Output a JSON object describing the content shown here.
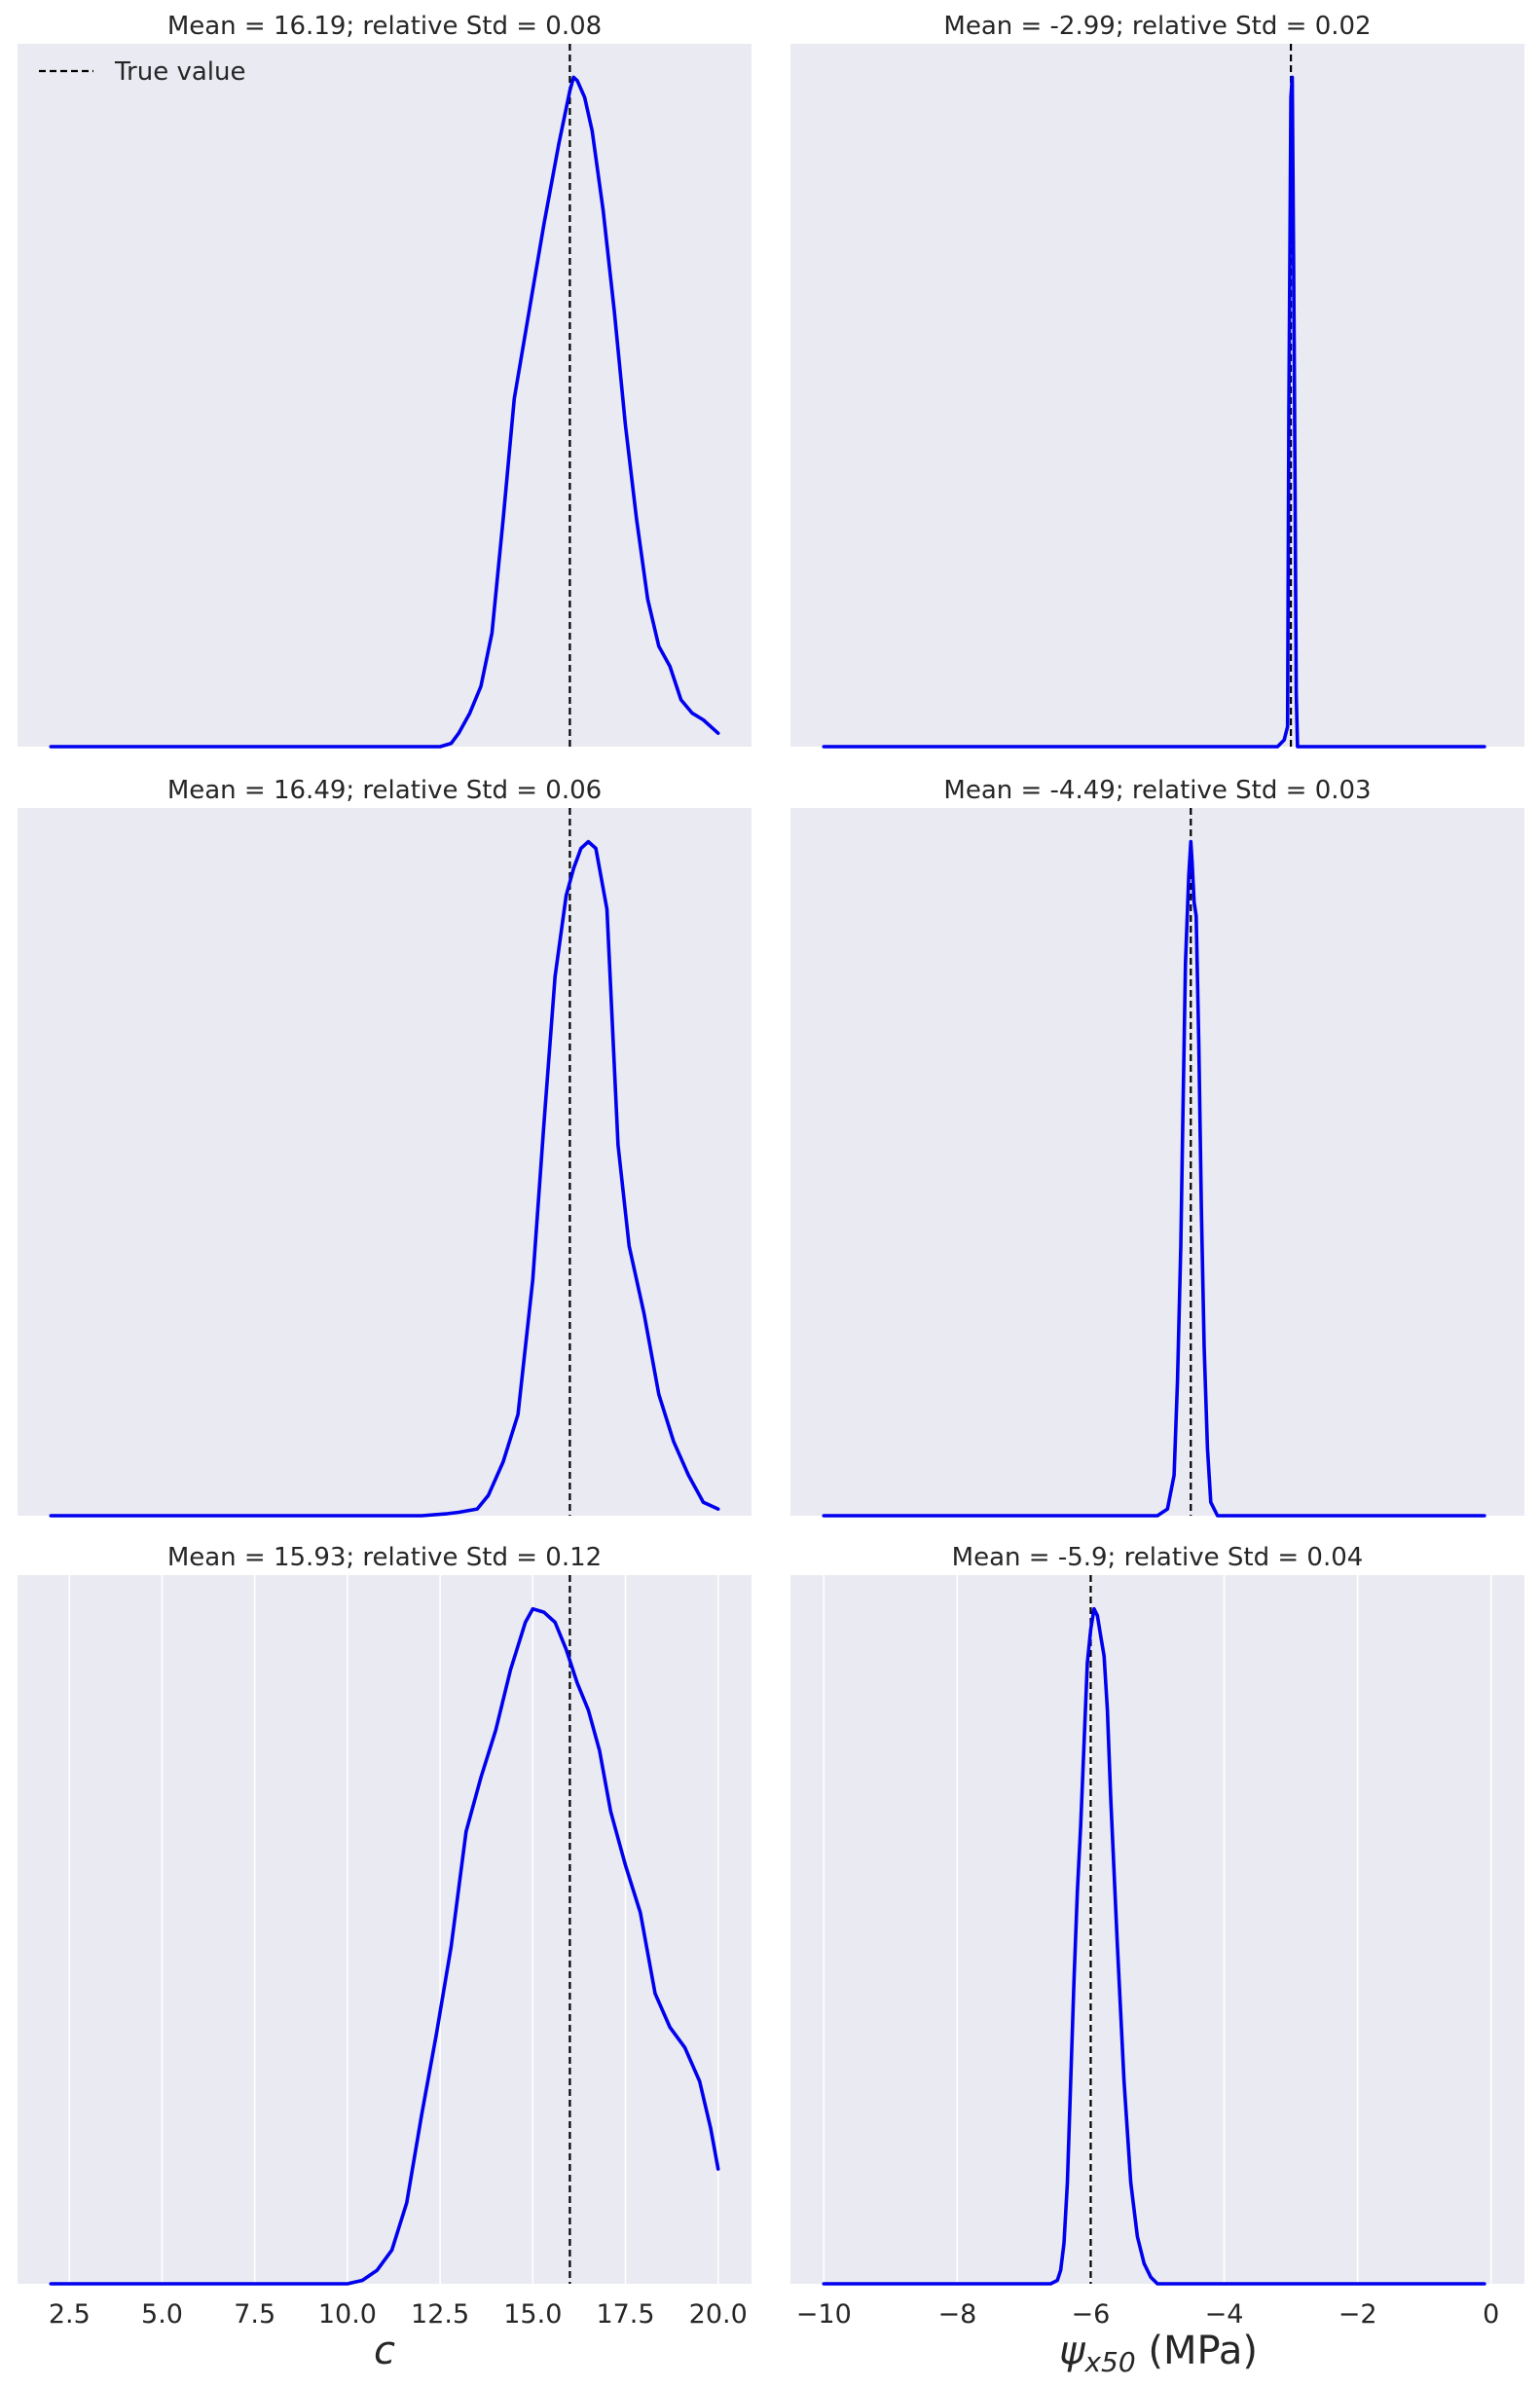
{
  "chart_data": [
    {
      "type": "line",
      "title": "Mean = 16.19; relative Std = 0.08",
      "xlabel": "",
      "ylabel": "",
      "xlim": [
        1.1,
        20.9
      ],
      "ylim": [
        0,
        1.05
      ],
      "grid": true,
      "legend": {
        "position": "top-left",
        "entries": [
          {
            "label": "True value",
            "style": "dashed",
            "color": "#000000"
          }
        ]
      },
      "true_value": 16.0,
      "series": [
        {
          "color": "#0000ee",
          "x": [
            2,
            4,
            6,
            8,
            10,
            11,
            12,
            12.5,
            12.8,
            13.0,
            13.3,
            13.6,
            13.9,
            14.2,
            14.5,
            14.9,
            15.3,
            15.7,
            16.0,
            16.1,
            16.2,
            16.4,
            16.6,
            16.9,
            17.2,
            17.5,
            17.8,
            18.1,
            18.4,
            18.7,
            19.0,
            19.3,
            19.6,
            20.0
          ],
          "y": [
            0.0,
            0.0,
            0.0,
            0.0,
            0.0,
            0.0,
            0.0,
            0.0,
            0.005,
            0.02,
            0.05,
            0.09,
            0.17,
            0.34,
            0.52,
            0.65,
            0.78,
            0.9,
            0.98,
            1.0,
            0.995,
            0.97,
            0.92,
            0.8,
            0.65,
            0.48,
            0.34,
            0.22,
            0.15,
            0.12,
            0.07,
            0.05,
            0.04,
            0.02
          ]
        }
      ]
    },
    {
      "type": "line",
      "title": "Mean = -2.99; relative Std = 0.02",
      "xlabel": "",
      "ylabel": "",
      "xlim": [
        -10.5,
        0.5
      ],
      "ylim": [
        0,
        1.05
      ],
      "grid": true,
      "true_value": -3.0,
      "series": [
        {
          "color": "#0000ee",
          "x": [
            -10,
            -8,
            -6,
            -4,
            -3.2,
            -3.1,
            -3.05,
            -3.03,
            -3.0,
            -2.98,
            -2.95,
            -2.92,
            -2.9,
            -2.8,
            -2,
            -1,
            -0.1
          ],
          "y": [
            0.0,
            0.0,
            0.0,
            0.0,
            0.0,
            0.01,
            0.03,
            0.5,
            0.97,
            1.0,
            0.6,
            0.08,
            0.0,
            0.0,
            0.0,
            0.0,
            0.0
          ]
        }
      ]
    },
    {
      "type": "line",
      "title": "Mean = 16.49; relative Std = 0.06",
      "xlabel": "",
      "ylabel": "",
      "xlim": [
        1.1,
        20.9
      ],
      "ylim": [
        0,
        1.05
      ],
      "grid": true,
      "true_value": 16.0,
      "series": [
        {
          "color": "#0000ee",
          "x": [
            2,
            4,
            6,
            8,
            10,
            11,
            12,
            12.7,
            13.0,
            13.5,
            13.8,
            14.2,
            14.6,
            15.0,
            15.3,
            15.6,
            15.9,
            16.1,
            16.3,
            16.5,
            16.7,
            17.0,
            17.3,
            17.6,
            18.0,
            18.4,
            18.8,
            19.2,
            19.6,
            20.0
          ],
          "y": [
            0.0,
            0.0,
            0.0,
            0.0,
            0.0,
            0.0,
            0.0,
            0.003,
            0.005,
            0.01,
            0.03,
            0.08,
            0.15,
            0.35,
            0.58,
            0.8,
            0.92,
            0.96,
            0.99,
            1.0,
            0.99,
            0.9,
            0.55,
            0.4,
            0.3,
            0.18,
            0.11,
            0.06,
            0.02,
            0.01
          ]
        }
      ]
    },
    {
      "type": "line",
      "title": "Mean = -4.49; relative Std = 0.03",
      "xlabel": "",
      "ylabel": "",
      "xlim": [
        -10.5,
        0.5
      ],
      "ylim": [
        0,
        1.05
      ],
      "grid": true,
      "true_value": -4.5,
      "series": [
        {
          "color": "#0000ee",
          "x": [
            -10,
            -8,
            -6,
            -5.0,
            -4.85,
            -4.75,
            -4.7,
            -4.65,
            -4.62,
            -4.58,
            -4.53,
            -4.5,
            -4.48,
            -4.45,
            -4.42,
            -4.38,
            -4.34,
            -4.3,
            -4.25,
            -4.2,
            -4.1,
            -3.5,
            -2,
            -1,
            -0.1
          ],
          "y": [
            0.0,
            0.0,
            0.0,
            0.0,
            0.01,
            0.06,
            0.2,
            0.4,
            0.58,
            0.82,
            0.95,
            1.0,
            0.97,
            0.91,
            0.89,
            0.7,
            0.45,
            0.25,
            0.1,
            0.02,
            0.0,
            0.0,
            0.0,
            0.0,
            0.0
          ]
        }
      ]
    },
    {
      "type": "line",
      "title": "Mean = 15.93; relative Std = 0.12",
      "xlabel": "c",
      "ylabel": "",
      "xlim": [
        1.1,
        20.9
      ],
      "ylim": [
        0,
        1.05
      ],
      "grid": true,
      "true_value": 16.0,
      "xticks": [
        2.5,
        5.0,
        7.5,
        10.0,
        12.5,
        15.0,
        17.5,
        20.0
      ],
      "xtick_labels": [
        "2.5",
        "5.0",
        "7.5",
        "10.0",
        "12.5",
        "15.0",
        "17.5",
        "20.0"
      ],
      "series": [
        {
          "color": "#0000ee",
          "x": [
            2,
            4,
            6,
            8,
            10,
            10.4,
            10.8,
            11.2,
            11.6,
            12.0,
            12.4,
            12.8,
            13.2,
            13.6,
            14.0,
            14.4,
            14.8,
            15.0,
            15.3,
            15.6,
            15.9,
            16.2,
            16.5,
            16.8,
            17.1,
            17.5,
            17.9,
            18.3,
            18.7,
            19.1,
            19.5,
            19.8,
            20.0
          ],
          "y": [
            0.0,
            0.0,
            0.0,
            0.0,
            0.0,
            0.005,
            0.02,
            0.05,
            0.12,
            0.25,
            0.37,
            0.5,
            0.67,
            0.75,
            0.82,
            0.91,
            0.98,
            1.0,
            0.995,
            0.98,
            0.94,
            0.89,
            0.85,
            0.79,
            0.7,
            0.62,
            0.55,
            0.43,
            0.38,
            0.35,
            0.3,
            0.23,
            0.17
          ]
        }
      ]
    },
    {
      "type": "line",
      "title": "Mean = -5.9; relative Std = 0.04",
      "xlabel": "ψx50 (MPa)",
      "ylabel": "",
      "xlim": [
        -10.5,
        0.5
      ],
      "ylim": [
        0,
        1.05
      ],
      "grid": true,
      "true_value": -6.0,
      "xticks": [
        -10,
        -8,
        -6,
        -4,
        -2,
        0
      ],
      "xtick_labels": [
        "−10",
        "−8",
        "−6",
        "−4",
        "−2",
        "0"
      ],
      "series": [
        {
          "color": "#0000ee",
          "x": [
            -10,
            -8,
            -7,
            -6.6,
            -6.5,
            -6.45,
            -6.4,
            -6.35,
            -6.3,
            -6.25,
            -6.2,
            -6.15,
            -6.1,
            -6.05,
            -6.0,
            -5.95,
            -5.9,
            -5.85,
            -5.8,
            -5.75,
            -5.7,
            -5.6,
            -5.5,
            -5.4,
            -5.3,
            -5.2,
            -5.1,
            -5.0,
            -4.5,
            -2,
            -0.1
          ],
          "y": [
            0.0,
            0.0,
            0.0,
            0.0,
            0.005,
            0.02,
            0.06,
            0.15,
            0.3,
            0.45,
            0.58,
            0.68,
            0.8,
            0.92,
            0.97,
            1.0,
            0.99,
            0.96,
            0.93,
            0.85,
            0.72,
            0.5,
            0.3,
            0.15,
            0.07,
            0.03,
            0.01,
            0.0,
            0.0,
            0.0,
            0.0
          ]
        }
      ]
    }
  ]
}
